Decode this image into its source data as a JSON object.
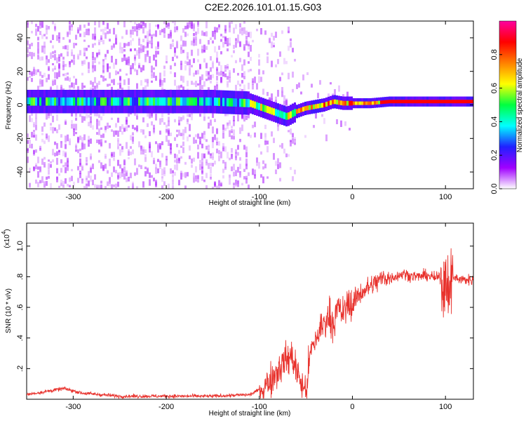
{
  "title": "C2E2.2026.101.01.15.G03",
  "colorbar": {
    "label": "Normalized spectral amplitude",
    "ticks": [
      "0.0",
      "0.2",
      "0.4",
      "0.6",
      "0.8"
    ],
    "range": [
      0,
      1
    ],
    "colormap": [
      "#ffffff",
      "#a000ff",
      "#2020ff",
      "#00ffff",
      "#00ff40",
      "#ffff00",
      "#ff8000",
      "#ff0000",
      "#ff00a0"
    ]
  },
  "chart_data": [
    {
      "type": "heatmap",
      "xlabel": "Height of straight line (km)",
      "ylabel": "Frequency (Hz)",
      "xlim": [
        -350,
        130
      ],
      "ylim": [
        -50,
        50
      ],
      "xticks": [
        -300,
        -200,
        -100,
        0,
        100
      ],
      "yticks": [
        -40,
        -20,
        0,
        20,
        40
      ],
      "ridge": {
        "x": [
          -350,
          -150,
          -110,
          -95,
          -80,
          -70,
          -60,
          -50,
          -40,
          -30,
          -20,
          -10,
          0,
          20,
          40,
          60,
          80,
          100,
          130
        ],
        "y": [
          2,
          2,
          1,
          -2,
          -5,
          -7,
          -4,
          -2,
          -1,
          0,
          2,
          1,
          1,
          1,
          2,
          2,
          2,
          2,
          2
        ]
      }
    },
    {
      "type": "line",
      "xlabel": "Height of straight line (km)",
      "ylabel": "SNR (10 * v/v)",
      "scale_note": "(x10",
      "scale_exp": "4",
      "xlim": [
        -350,
        130
      ],
      "ylim": [
        0,
        1.15
      ],
      "xticks": [
        -300,
        -200,
        -100,
        0,
        100
      ],
      "yticks": [
        0.2,
        0.4,
        0.6,
        0.8,
        1.0
      ],
      "series": [
        {
          "color": "#e8322d",
          "x": [
            -350,
            -330,
            -310,
            -290,
            -270,
            -250,
            -200,
            -150,
            -110,
            -95,
            -85,
            -75,
            -65,
            -55,
            -50,
            -45,
            -40,
            -35,
            -30,
            -25,
            -20,
            -15,
            -10,
            -5,
            0,
            5,
            10,
            15,
            20,
            25,
            30,
            35,
            40,
            45,
            50,
            55,
            60,
            70,
            80,
            90,
            95,
            100,
            105,
            110,
            120,
            130
          ],
          "y": [
            0.03,
            0.05,
            0.07,
            0.04,
            0.03,
            0.02,
            0.02,
            0.02,
            0.03,
            0.08,
            0.15,
            0.24,
            0.28,
            0.1,
            0.05,
            0.3,
            0.38,
            0.45,
            0.5,
            0.55,
            0.5,
            0.6,
            0.55,
            0.62,
            0.62,
            0.67,
            0.7,
            0.72,
            0.74,
            0.76,
            0.78,
            0.8,
            0.79,
            0.8,
            0.81,
            0.82,
            0.81,
            0.8,
            0.81,
            0.79,
            0.8,
            0.7,
            0.8,
            0.79,
            0.78,
            0.78
          ]
        }
      ]
    }
  ]
}
